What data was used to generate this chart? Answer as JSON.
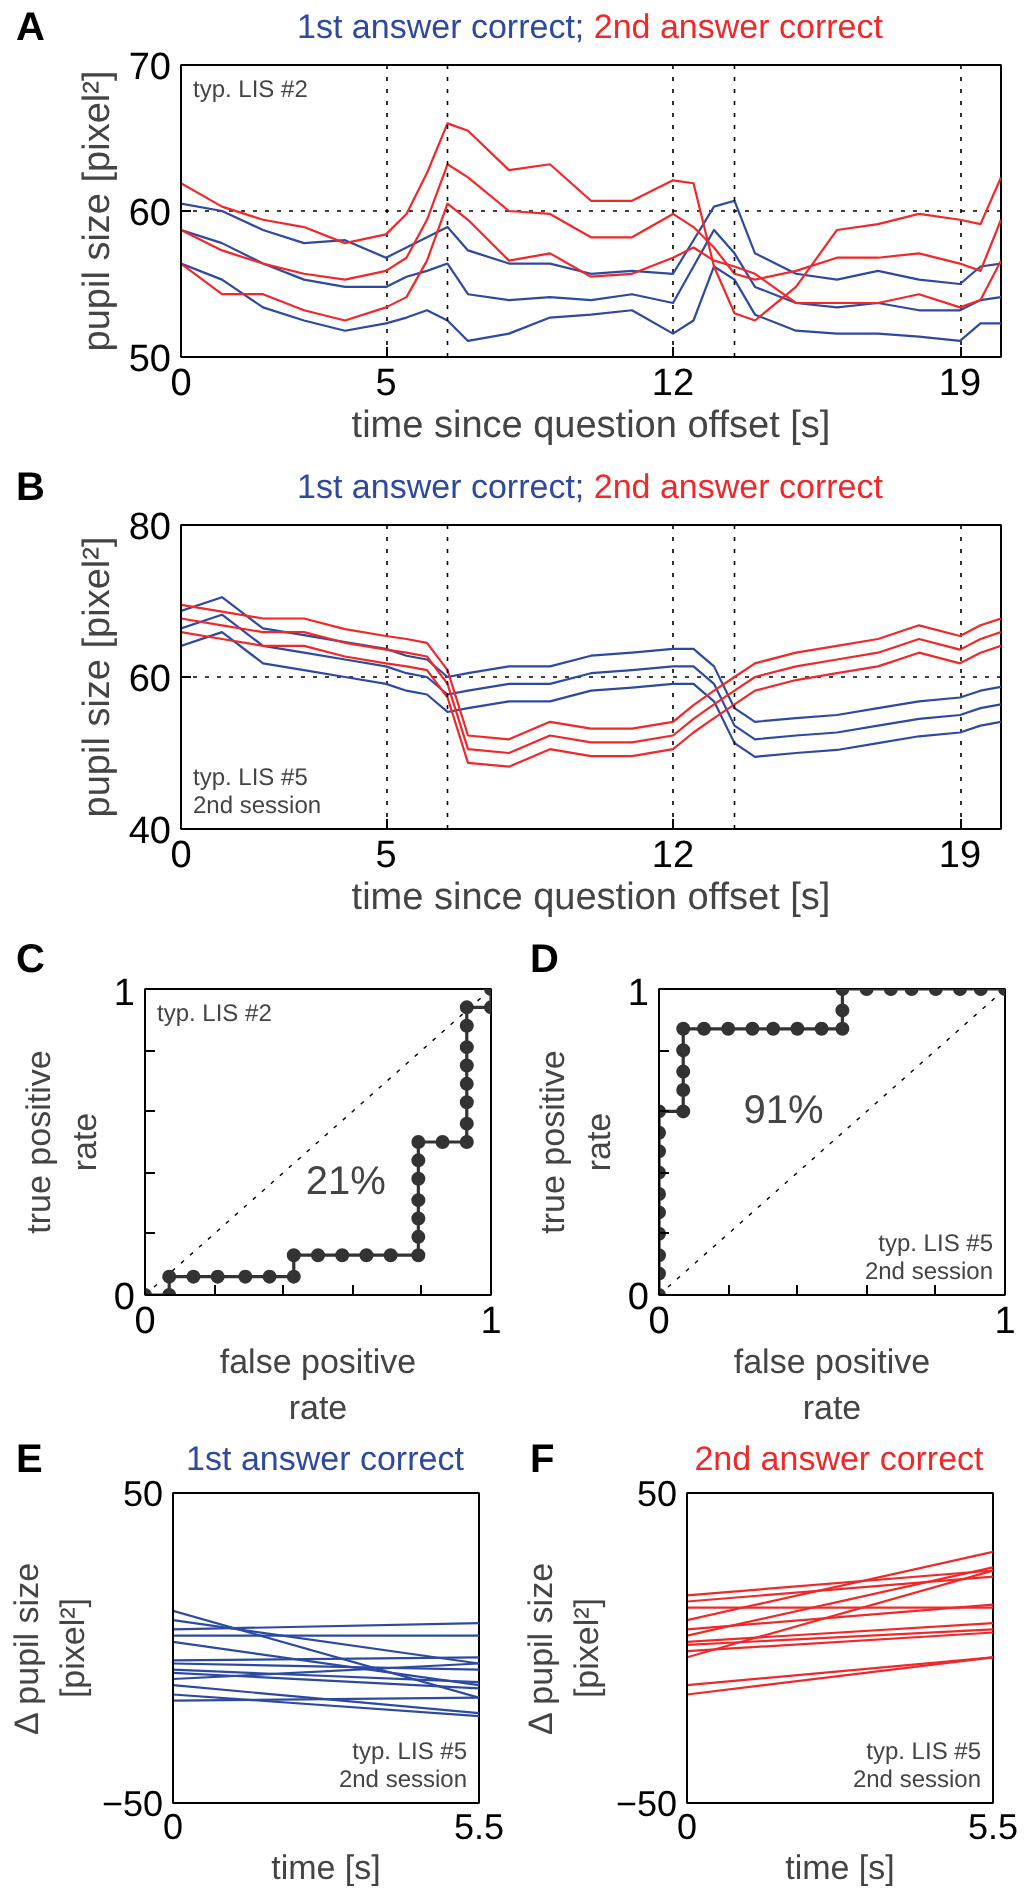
{
  "chart_data": [
    {
      "type": "line",
      "title": "A",
      "xlabel": "time since question offset [s]",
      "ylabel": "pupil size [pixel²]",
      "x": [
        0,
        1,
        2,
        3,
        4,
        5,
        5.5,
        6,
        6.5,
        7,
        8,
        9,
        10,
        11,
        12,
        12.5,
        13,
        13.5,
        14,
        15,
        16,
        17,
        18,
        19,
        19.5,
        20
      ],
      "xlim": [
        0,
        20
      ],
      "ylim": [
        50,
        70
      ],
      "xticks": [
        0,
        5,
        12,
        19
      ],
      "yticks": [
        50,
        60,
        70
      ],
      "grid": true,
      "line_style": "solid",
      "ref_lines": [
        {
          "axis": "x",
          "value": 6.5,
          "color": "#000000",
          "line_style": "dotted"
        },
        {
          "axis": "x",
          "value": 13.5,
          "color": "#000000",
          "line_style": "dotted"
        }
      ],
      "annotations": [
        "typ. LIS #2"
      ],
      "series": [
        {
          "name": "1st answer correct;",
          "color": "#2e4aa0",
          "values": [
            60.5,
            60.0,
            58.7,
            57.8,
            58.0,
            56.8,
            57.5,
            58.2,
            58.9,
            57.3,
            56.4,
            56.4,
            55.7,
            55.9,
            55.7,
            58.0,
            60.3,
            60.7,
            57.1,
            55.7,
            55.3,
            55.9,
            55.3,
            55.0,
            56.2,
            56.4
          ]
        },
        {
          "color": "#2e4aa0",
          "values": [
            58.7,
            57.8,
            56.4,
            55.3,
            54.8,
            54.8,
            55.5,
            55.9,
            56.4,
            54.3,
            53.9,
            54.1,
            53.9,
            54.3,
            53.7,
            56.2,
            58.7,
            57.1,
            54.8,
            53.7,
            53.4,
            53.7,
            53.2,
            53.2,
            53.9,
            54.1
          ]
        },
        {
          "color": "#2e4aa0",
          "values": [
            56.4,
            55.3,
            53.4,
            52.5,
            51.8,
            52.3,
            52.7,
            53.2,
            52.5,
            51.1,
            51.6,
            52.7,
            52.9,
            53.2,
            51.6,
            52.5,
            56.2,
            55.3,
            52.9,
            51.8,
            51.6,
            51.6,
            51.4,
            51.1,
            52.3,
            52.3
          ]
        },
        {
          "name": "2nd answer correct",
          "color": "#f0282a",
          "values": [
            61.9,
            60.3,
            59.4,
            58.9,
            57.8,
            58.4,
            59.8,
            62.6,
            66.0,
            65.5,
            62.8,
            63.2,
            60.7,
            60.7,
            62.1,
            61.9,
            56.2,
            53.0,
            52.5,
            54.8,
            58.7,
            59.1,
            59.8,
            59.4,
            59.1,
            62.3
          ]
        },
        {
          "color": "#f0282a",
          "values": [
            58.7,
            57.3,
            56.4,
            55.7,
            55.3,
            55.9,
            56.8,
            59.4,
            63.2,
            62.3,
            60.0,
            59.8,
            58.2,
            58.2,
            59.8,
            58.9,
            57.5,
            55.7,
            55.3,
            55.9,
            56.8,
            56.8,
            57.1,
            56.4,
            55.9,
            59.4
          ]
        },
        {
          "color": "#f0282a",
          "values": [
            56.4,
            54.3,
            54.3,
            53.2,
            52.5,
            53.4,
            54.1,
            56.6,
            60.5,
            59.4,
            56.6,
            57.1,
            55.5,
            55.7,
            56.8,
            57.5,
            56.6,
            56.2,
            55.7,
            53.7,
            53.7,
            53.7,
            54.3,
            53.4,
            53.9,
            56.6
          ]
        }
      ]
    },
    {
      "type": "line",
      "title": "B",
      "xlabel": "time since question offset [s]",
      "ylabel": "pupil size [pixel²]",
      "x": [
        0,
        1,
        2,
        3,
        4,
        5,
        5.5,
        6,
        6.5,
        7,
        8,
        9,
        10,
        11,
        12,
        12.5,
        13,
        13.5,
        14,
        15,
        16,
        17,
        18,
        19,
        19.5,
        20
      ],
      "xlim": [
        0,
        20
      ],
      "ylim": [
        40,
        80
      ],
      "xticks": [
        0,
        5,
        12,
        19
      ],
      "yticks": [
        40,
        60,
        80
      ],
      "grid": true,
      "line_style": "solid",
      "ref_lines": [
        {
          "axis": "x",
          "value": 6.5,
          "color": "#000000",
          "line_style": "dotted"
        },
        {
          "axis": "x",
          "value": 13.5,
          "color": "#000000",
          "line_style": "dotted"
        }
      ],
      "annotations": [
        "typ. LIS #5",
        "2nd session"
      ],
      "series": [
        {
          "name": "1st answer correct;",
          "color": "#2e4aa0",
          "values": [
            68.7,
            70.5,
            66.4,
            65.5,
            64.6,
            63.7,
            62.8,
            62.3,
            60.0,
            60.5,
            61.4,
            61.4,
            62.8,
            63.2,
            63.7,
            63.7,
            61.4,
            55.9,
            54.1,
            54.6,
            55.0,
            55.9,
            56.8,
            57.3,
            58.2,
            58.7
          ]
        },
        {
          "color": "#2e4aa0",
          "values": [
            66.4,
            68.2,
            64.1,
            63.2,
            62.3,
            61.4,
            60.5,
            60.0,
            57.7,
            58.2,
            59.1,
            59.1,
            60.5,
            60.9,
            61.4,
            61.4,
            59.1,
            53.6,
            51.8,
            52.3,
            52.7,
            53.6,
            54.5,
            55.0,
            55.9,
            56.4
          ]
        },
        {
          "color": "#2e4aa0",
          "values": [
            64.1,
            65.9,
            61.8,
            60.9,
            60.0,
            59.1,
            58.2,
            57.7,
            55.4,
            55.9,
            56.8,
            56.8,
            58.2,
            58.6,
            59.1,
            59.1,
            56.8,
            51.3,
            49.5,
            50.0,
            50.4,
            51.3,
            52.2,
            52.7,
            53.6,
            54.1
          ]
        },
        {
          "name": "2nd answer correct",
          "color": "#f0282a",
          "values": [
            69.5,
            68.6,
            67.7,
            67.7,
            66.3,
            65.4,
            65.0,
            64.5,
            60.9,
            52.3,
            51.8,
            54.1,
            53.2,
            53.2,
            54.1,
            56.3,
            58.2,
            60.0,
            61.8,
            63.2,
            64.1,
            65.0,
            66.8,
            65.4,
            66.8,
            67.7
          ]
        },
        {
          "color": "#f0282a",
          "values": [
            67.7,
            66.8,
            65.9,
            65.9,
            64.5,
            63.6,
            63.2,
            62.7,
            59.1,
            50.5,
            50.0,
            52.3,
            51.4,
            51.4,
            52.3,
            54.5,
            56.4,
            58.2,
            60.0,
            61.4,
            62.3,
            63.2,
            65.0,
            63.6,
            65.0,
            65.9
          ]
        },
        {
          "color": "#f0282a",
          "values": [
            65.9,
            65.0,
            64.1,
            64.1,
            62.7,
            61.8,
            61.4,
            60.9,
            57.3,
            48.7,
            48.2,
            50.5,
            49.6,
            49.6,
            50.5,
            52.7,
            54.6,
            56.4,
            58.2,
            59.6,
            60.5,
            61.4,
            63.2,
            61.8,
            63.2,
            64.1
          ]
        }
      ]
    },
    {
      "type": "line",
      "title": "C",
      "xlabel": "false positive\nrate",
      "ylabel": "true positive\nrate",
      "xlim": [
        0,
        1
      ],
      "ylim": [
        0,
        1
      ],
      "xticks": [
        0,
        {
          "value": 0.2,
          "label": null
        },
        {
          "value": 0.4,
          "label": null
        },
        {
          "value": 0.6,
          "label": null
        },
        {
          "value": 0.8,
          "label": null
        },
        1
      ],
      "yticks": [
        0,
        {
          "value": 0.2,
          "label": null
        },
        {
          "value": 0.4,
          "label": null
        },
        {
          "value": 0.6,
          "label": null
        },
        {
          "value": 0.8,
          "label": null
        },
        1
      ],
      "annotations": [
        "typ. LIS #2",
        "21%"
      ],
      "series": [
        {
          "color": "#000000",
          "line_style": "dotted",
          "marker": "none",
          "x": [
            0,
            1
          ],
          "values": [
            0,
            1
          ]
        },
        {
          "color": "#333333",
          "line_style": "solid",
          "marker": "circle",
          "x": [
            0,
            0.07,
            0.07,
            0.14,
            0.21,
            0.29,
            0.36,
            0.43,
            0.43,
            0.5,
            0.57,
            0.64,
            0.71,
            0.79,
            0.79,
            0.79,
            0.79,
            0.79,
            0.79,
            0.79,
            0.86,
            0.93,
            0.93,
            0.93,
            0.93,
            0.93,
            0.93,
            0.93,
            0.93,
            1,
            1
          ],
          "values": [
            0,
            0,
            0.06,
            0.06,
            0.06,
            0.06,
            0.06,
            0.06,
            0.13,
            0.13,
            0.13,
            0.13,
            0.13,
            0.13,
            0.19,
            0.25,
            0.31,
            0.38,
            0.44,
            0.5,
            0.5,
            0.5,
            0.56,
            0.63,
            0.69,
            0.75,
            0.81,
            0.88,
            0.94,
            0.94,
            1
          ]
        }
      ]
    },
    {
      "type": "line",
      "title": "D",
      "xlabel": "false positive\nrate",
      "ylabel": "true positive\nrate",
      "xlim": [
        0,
        1
      ],
      "ylim": [
        0,
        1
      ],
      "xticks": [
        0,
        {
          "value": 0.2,
          "label": null
        },
        {
          "value": 0.4,
          "label": null
        },
        {
          "value": 0.6,
          "label": null
        },
        {
          "value": 0.8,
          "label": null
        },
        1
      ],
      "yticks": [
        0,
        {
          "value": 0.2,
          "label": null
        },
        {
          "value": 0.4,
          "label": null
        },
        {
          "value": 0.6,
          "label": null
        },
        {
          "value": 0.8,
          "label": null
        },
        1
      ],
      "annotations": [
        "typ. LIS #5",
        "2nd session",
        "91%"
      ],
      "series": [
        {
          "color": "#000000",
          "line_style": "dotted",
          "marker": "none",
          "x": [
            0,
            1
          ],
          "values": [
            0,
            1
          ]
        },
        {
          "color": "#333333",
          "line_style": "solid",
          "marker": "circle",
          "x": [
            0,
            0,
            0,
            0,
            0,
            0,
            0,
            0,
            0,
            0,
            0.07,
            0.07,
            0.07,
            0.07,
            0.07,
            0.13,
            0.2,
            0.27,
            0.33,
            0.4,
            0.47,
            0.53,
            0.53,
            0.53,
            0.6,
            0.67,
            0.73,
            0.8,
            0.87,
            0.93,
            1
          ],
          "values": [
            0,
            0.07,
            0.13,
            0.2,
            0.27,
            0.33,
            0.4,
            0.47,
            0.53,
            0.6,
            0.6,
            0.67,
            0.73,
            0.8,
            0.87,
            0.87,
            0.87,
            0.87,
            0.87,
            0.87,
            0.87,
            0.87,
            0.93,
            1,
            1,
            1,
            1,
            1,
            1,
            1,
            1
          ]
        }
      ]
    },
    {
      "type": "line",
      "title": "E",
      "xlabel": "time [s]",
      "ylabel": "Δ pupil size\n[pixel²]",
      "x": [
        0,
        5.5
      ],
      "xlim": [
        0,
        5.5
      ],
      "ylim": [
        -50,
        50
      ],
      "xticks": [
        0,
        5.5
      ],
      "yticks": [
        {
          "value": -50,
          "label": "−50"
        },
        50
      ],
      "annotations": [
        "typ. LIS #5",
        "2nd session"
      ],
      "series": [
        {
          "name": "1st answer correct",
          "color": "#2e4aa0",
          "values": [
            12,
            -16
          ]
        },
        {
          "color": "#2e4aa0",
          "values": [
            9,
            -5
          ]
        },
        {
          "color": "#2e4aa0",
          "values": [
            6,
            8
          ]
        },
        {
          "color": "#2e4aa0",
          "values": [
            4,
            4
          ]
        },
        {
          "color": "#2e4aa0",
          "values": [
            2,
            -12
          ]
        },
        {
          "color": "#2e4aa0",
          "values": [
            -4,
            -3
          ]
        },
        {
          "color": "#2e4aa0",
          "values": [
            -5,
            -7
          ]
        },
        {
          "color": "#2e4aa0",
          "values": [
            -7,
            -11
          ]
        },
        {
          "color": "#2e4aa0",
          "values": [
            -8,
            -13
          ]
        },
        {
          "color": "#2e4aa0",
          "values": [
            -10,
            -5
          ]
        },
        {
          "color": "#2e4aa0",
          "values": [
            -12,
            -21
          ]
        },
        {
          "color": "#2e4aa0",
          "values": [
            -15,
            -22
          ]
        },
        {
          "color": "#2e4aa0",
          "values": [
            -17,
            -16
          ]
        }
      ]
    },
    {
      "type": "line",
      "title": "F",
      "xlabel": "time [s]",
      "ylabel": "Δ pupil size\n[pixel²]",
      "x": [
        0,
        5.5
      ],
      "xlim": [
        0,
        5.5
      ],
      "ylim": [
        -50,
        50
      ],
      "xticks": [
        0,
        5.5
      ],
      "yticks": [
        {
          "value": -50,
          "label": "−50"
        },
        50
      ],
      "annotations": [
        "typ. LIS #5",
        "2nd session"
      ],
      "series": [
        {
          "name": "2nd answer correct",
          "color": "#f0282a",
          "values": [
            17,
            25
          ]
        },
        {
          "color": "#f0282a",
          "values": [
            15,
            23
          ]
        },
        {
          "color": "#f0282a",
          "values": [
            13,
            13
          ]
        },
        {
          "color": "#f0282a",
          "values": [
            9,
            31
          ]
        },
        {
          "color": "#f0282a",
          "values": [
            6,
            14
          ]
        },
        {
          "color": "#f0282a",
          "values": [
            4,
            26
          ]
        },
        {
          "color": "#f0282a",
          "values": [
            2,
            8
          ]
        },
        {
          "color": "#f0282a",
          "values": [
            1,
            6
          ]
        },
        {
          "color": "#f0282a",
          "values": [
            -1,
            5
          ]
        },
        {
          "color": "#f0282a",
          "values": [
            -3,
            25
          ]
        },
        {
          "color": "#f0282a",
          "values": [
            -12,
            -3
          ]
        },
        {
          "color": "#f0282a",
          "values": [
            -15,
            -3
          ]
        }
      ]
    }
  ]
}
